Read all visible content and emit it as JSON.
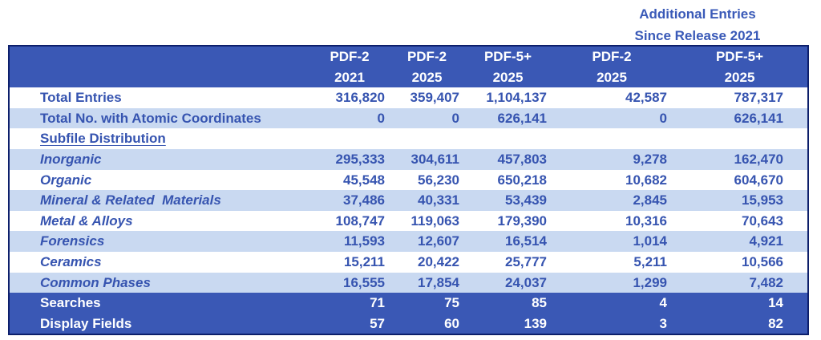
{
  "additional_header": [
    "Additional Entries",
    "Since Release 2021"
  ],
  "columns": [
    {
      "line1": "PDF-2",
      "line2": "2021"
    },
    {
      "line1": "PDF-2",
      "line2": "2025"
    },
    {
      "line1": "PDF-5+",
      "line2": "2025"
    },
    {
      "line1": "PDF-2",
      "line2": "2025"
    },
    {
      "line1": "PDF-5+",
      "line2": "2025"
    }
  ],
  "rows": [
    {
      "label": "Total Entries",
      "values": [
        "316,820",
        "359,407",
        "1,104,137",
        "42,587",
        "787,317"
      ]
    },
    {
      "label": "Total No. with Atomic Coordinates",
      "values": [
        "0",
        "0",
        "626,141",
        "0",
        "626,141"
      ]
    }
  ],
  "subfile_heading": "Subfile Distribution",
  "subfiles": [
    {
      "label": "Inorganic",
      "values": [
        "295,333",
        "304,611",
        "457,803",
        "9,278",
        "162,470"
      ]
    },
    {
      "label": "Organic",
      "values": [
        "45,548",
        "56,230",
        "650,218",
        "10,682",
        "604,670"
      ]
    },
    {
      "label": "Mineral & Related  Materials",
      "values": [
        "37,486",
        "40,331",
        "53,439",
        "2,845",
        "15,953"
      ]
    },
    {
      "label": "Metal & Alloys",
      "values": [
        "108,747",
        "119,063",
        "179,390",
        "10,316",
        "70,643"
      ]
    },
    {
      "label": "Forensics",
      "values": [
        "11,593",
        "12,607",
        "16,514",
        "1,014",
        "4,921"
      ]
    },
    {
      "label": "Ceramics",
      "values": [
        "15,211",
        "20,422",
        "25,777",
        "5,211",
        "10,566"
      ]
    },
    {
      "label": "Common Phases",
      "values": [
        "16,555",
        "17,854",
        "24,037",
        "1,299",
        "7,482"
      ]
    }
  ],
  "footer_rows": [
    {
      "label": "Searches",
      "values": [
        "71",
        "75",
        "85",
        "4",
        "14"
      ]
    },
    {
      "label": "Display Fields",
      "values": [
        "57",
        "60",
        "139",
        "3",
        "82"
      ]
    }
  ],
  "colors": {
    "dark_blue": "#3a58b5",
    "light_band": "#c9d9f1",
    "text_blue": "#3654b0",
    "border": "#0d1f6b"
  }
}
